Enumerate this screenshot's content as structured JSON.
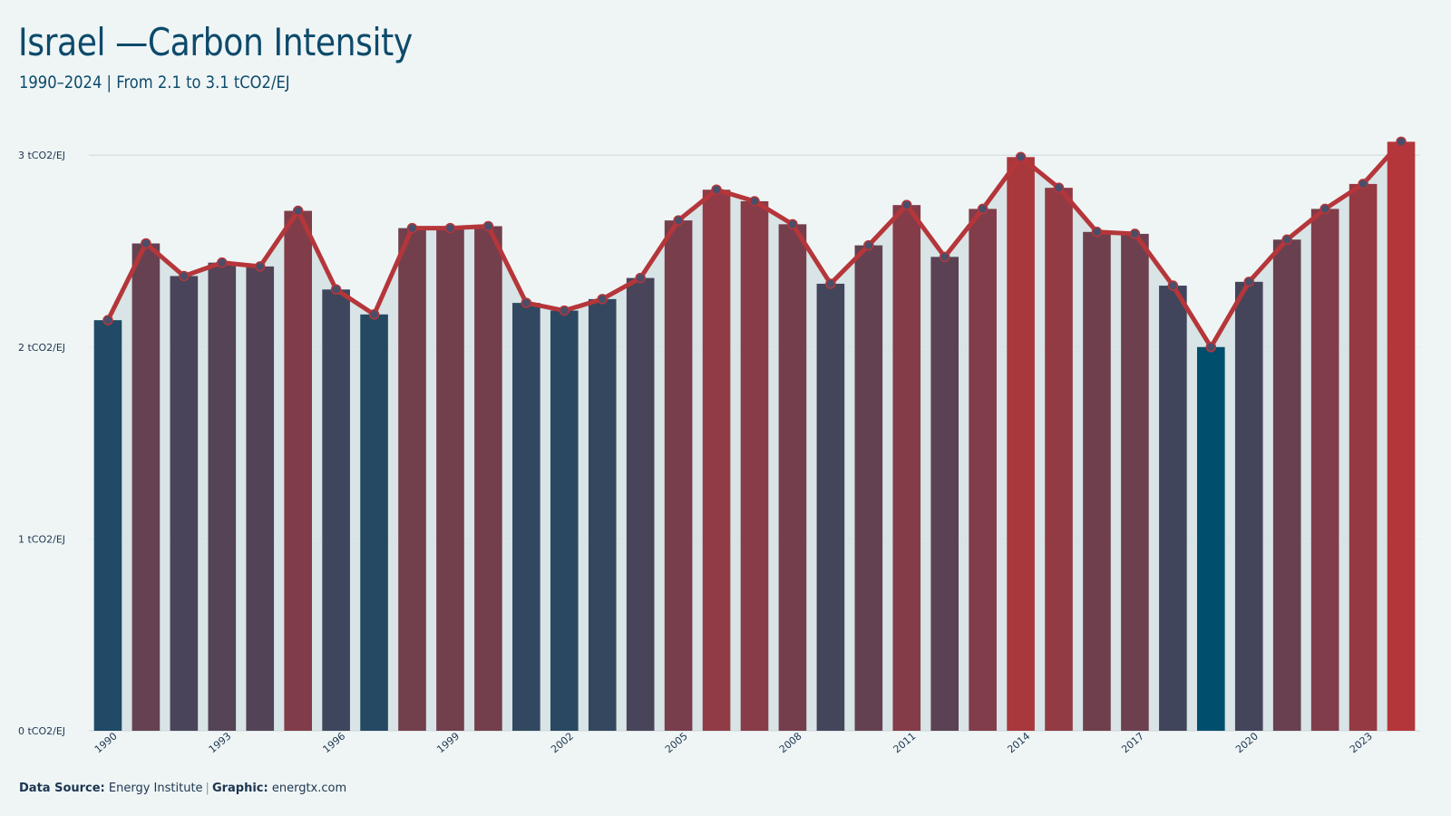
{
  "title": "Israel —Carbon Intensity",
  "subtitle": "1990–2024 | From 2.1 to 3.1 tCO2/EJ",
  "footer": {
    "source_label": "Data Source:",
    "source_value": "Energy Institute",
    "separator": "|",
    "graphic_label": "Graphic:",
    "graphic_value": "energtx.com"
  },
  "colors": {
    "background": "#eff5f5",
    "line": "#b5363a",
    "bar_low": "#004e6e",
    "bar_high": "#b5363a",
    "marker": "#4a4e69",
    "grid": "#cfd8dc"
  },
  "chart_data": {
    "type": "bar",
    "ylim": [
      0,
      3.1
    ],
    "yticks": [
      0,
      1,
      2,
      3
    ],
    "ytick_labels": [
      "0 tCO2/EJ",
      "1 tCO2/EJ",
      "2 tCO2/EJ",
      "3 tCO2/EJ"
    ],
    "xtick_labels": [
      "1990",
      "1993",
      "1996",
      "1999",
      "2002",
      "2005",
      "2008",
      "2011",
      "2014",
      "2017",
      "2020",
      "2023"
    ],
    "categories": [
      "1990",
      "1991",
      "1992",
      "1993",
      "1994",
      "1995",
      "1996",
      "1997",
      "1998",
      "1999",
      "2000",
      "2001",
      "2002",
      "2003",
      "2004",
      "2005",
      "2006",
      "2007",
      "2008",
      "2009",
      "2010",
      "2011",
      "2012",
      "2013",
      "2014",
      "2015",
      "2016",
      "2017",
      "2018",
      "2019",
      "2020",
      "2021",
      "2022",
      "2023",
      "2024"
    ],
    "values": [
      2.14,
      2.54,
      2.37,
      2.44,
      2.42,
      2.71,
      2.3,
      2.17,
      2.62,
      2.62,
      2.63,
      2.23,
      2.19,
      2.25,
      2.36,
      2.66,
      2.82,
      2.76,
      2.64,
      2.33,
      2.53,
      2.74,
      2.47,
      2.72,
      2.99,
      2.83,
      2.6,
      2.59,
      2.32,
      2.0,
      2.34,
      2.56,
      2.72,
      2.85,
      3.07
    ],
    "overlay": "line-with-markers"
  }
}
